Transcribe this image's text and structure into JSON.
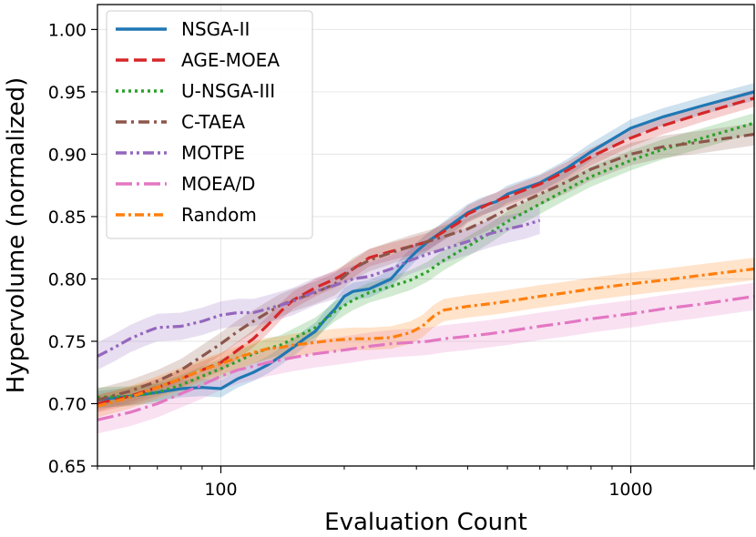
{
  "chart_data": {
    "type": "line",
    "xlabel": "Evaluation Count",
    "ylabel": "Hypervolume (normalized)",
    "x_scale": "log",
    "xlim": [
      50,
      2000
    ],
    "ylim": [
      0.65,
      1.02
    ],
    "x_tick_values": [
      100,
      1000
    ],
    "x_tick_labels": [
      "100",
      "1000"
    ],
    "y_ticks": [
      0.65,
      0.7,
      0.75,
      0.8,
      0.85,
      0.9,
      0.95,
      1.0
    ],
    "y_tick_labels": [
      "0.65",
      "0.70",
      "0.75",
      "0.80",
      "0.85",
      "0.90",
      "0.95",
      "1.00"
    ],
    "grid": true,
    "legend_position": "top-left",
    "series": [
      {
        "name": "NSGA-II",
        "color": "#1f77b4",
        "dash": "solid",
        "band": 0.007,
        "x": [
          50,
          60,
          70,
          80,
          90,
          100,
          110,
          120,
          130,
          140,
          150,
          160,
          170,
          180,
          190,
          200,
          210,
          230,
          260,
          280,
          300,
          320,
          340,
          370,
          400,
          430,
          470,
          500,
          600,
          700,
          800,
          1000,
          1200,
          1500,
          2000
        ],
        "y": [
          0.703,
          0.706,
          0.709,
          0.712,
          0.713,
          0.712,
          0.72,
          0.725,
          0.731,
          0.738,
          0.745,
          0.752,
          0.758,
          0.768,
          0.776,
          0.786,
          0.79,
          0.792,
          0.8,
          0.812,
          0.822,
          0.83,
          0.836,
          0.845,
          0.853,
          0.858,
          0.862,
          0.868,
          0.877,
          0.889,
          0.902,
          0.921,
          0.93,
          0.939,
          0.95
        ]
      },
      {
        "name": "AGE-MOEA",
        "color": "#d62728",
        "dash": "dashed",
        "band": 0.007,
        "x": [
          50,
          60,
          70,
          80,
          90,
          100,
          110,
          120,
          130,
          140,
          150,
          170,
          190,
          210,
          230,
          260,
          290,
          320,
          350,
          380,
          400,
          450,
          500,
          600,
          700,
          800,
          1000,
          1200,
          1500,
          2000
        ],
        "y": [
          0.7,
          0.706,
          0.713,
          0.72,
          0.727,
          0.733,
          0.743,
          0.752,
          0.763,
          0.774,
          0.783,
          0.793,
          0.8,
          0.808,
          0.817,
          0.822,
          0.826,
          0.83,
          0.838,
          0.845,
          0.852,
          0.86,
          0.866,
          0.876,
          0.887,
          0.898,
          0.913,
          0.923,
          0.933,
          0.945
        ]
      },
      {
        "name": "U-NSGA-III",
        "color": "#2ca02c",
        "dash": "dotted",
        "band": 0.008,
        "x": [
          50,
          60,
          70,
          80,
          90,
          100,
          110,
          120,
          130,
          140,
          150,
          170,
          190,
          210,
          230,
          260,
          290,
          320,
          350,
          400,
          450,
          500,
          600,
          700,
          800,
          1000,
          1200,
          1500,
          2000
        ],
        "y": [
          0.705,
          0.706,
          0.709,
          0.715,
          0.722,
          0.728,
          0.734,
          0.74,
          0.744,
          0.747,
          0.752,
          0.761,
          0.774,
          0.783,
          0.789,
          0.794,
          0.799,
          0.806,
          0.815,
          0.826,
          0.836,
          0.846,
          0.86,
          0.872,
          0.882,
          0.895,
          0.904,
          0.913,
          0.925
        ]
      },
      {
        "name": "C-TAEA",
        "color": "#8c564b",
        "dash": "dashdot",
        "band": 0.009,
        "x": [
          50,
          60,
          70,
          80,
          90,
          100,
          110,
          120,
          130,
          140,
          150,
          170,
          190,
          210,
          230,
          260,
          290,
          320,
          350,
          400,
          450,
          500,
          600,
          700,
          800,
          1000,
          1200,
          1500,
          2000
        ],
        "y": [
          0.703,
          0.71,
          0.718,
          0.727,
          0.738,
          0.748,
          0.758,
          0.766,
          0.773,
          0.779,
          0.783,
          0.789,
          0.796,
          0.808,
          0.815,
          0.821,
          0.826,
          0.83,
          0.834,
          0.84,
          0.848,
          0.856,
          0.868,
          0.878,
          0.888,
          0.9,
          0.906,
          0.91,
          0.916
        ]
      },
      {
        "name": "MOTPE",
        "color": "#9467bd",
        "dash": "dashdotdot",
        "band": 0.011,
        "x": [
          50,
          55,
          60,
          65,
          70,
          80,
          90,
          100,
          110,
          120,
          130,
          140,
          150,
          170,
          190,
          210,
          230,
          260,
          290,
          320,
          350,
          400,
          450,
          500,
          550,
          600
        ],
        "y": [
          0.738,
          0.745,
          0.752,
          0.757,
          0.761,
          0.762,
          0.766,
          0.771,
          0.773,
          0.773,
          0.776,
          0.779,
          0.782,
          0.79,
          0.795,
          0.8,
          0.802,
          0.808,
          0.815,
          0.82,
          0.824,
          0.83,
          0.836,
          0.84,
          0.843,
          0.847
        ]
      },
      {
        "name": "MOEA/D",
        "color": "#e377c2",
        "dash": "longdashdot",
        "band": 0.011,
        "x": [
          50,
          60,
          70,
          80,
          90,
          100,
          110,
          120,
          130,
          140,
          150,
          170,
          190,
          210,
          230,
          260,
          290,
          320,
          350,
          400,
          450,
          500,
          600,
          700,
          800,
          1000,
          1200,
          1500,
          2000
        ],
        "y": [
          0.687,
          0.693,
          0.7,
          0.708,
          0.715,
          0.722,
          0.727,
          0.73,
          0.733,
          0.735,
          0.737,
          0.74,
          0.742,
          0.744,
          0.746,
          0.748,
          0.749,
          0.75,
          0.752,
          0.754,
          0.756,
          0.758,
          0.762,
          0.765,
          0.768,
          0.772,
          0.776,
          0.78,
          0.786
        ]
      },
      {
        "name": "Random",
        "color": "#ff7f0e",
        "dash": "dashdotlong",
        "band": 0.009,
        "x": [
          50,
          60,
          70,
          80,
          90,
          100,
          110,
          120,
          130,
          140,
          150,
          170,
          190,
          210,
          230,
          260,
          290,
          310,
          330,
          350,
          400,
          450,
          500,
          600,
          700,
          800,
          1000,
          1200,
          1500,
          2000
        ],
        "y": [
          0.698,
          0.705,
          0.713,
          0.72,
          0.727,
          0.732,
          0.737,
          0.741,
          0.744,
          0.745,
          0.747,
          0.749,
          0.751,
          0.752,
          0.752,
          0.753,
          0.757,
          0.762,
          0.77,
          0.775,
          0.778,
          0.78,
          0.782,
          0.786,
          0.789,
          0.792,
          0.796,
          0.799,
          0.803,
          0.808
        ]
      }
    ]
  }
}
